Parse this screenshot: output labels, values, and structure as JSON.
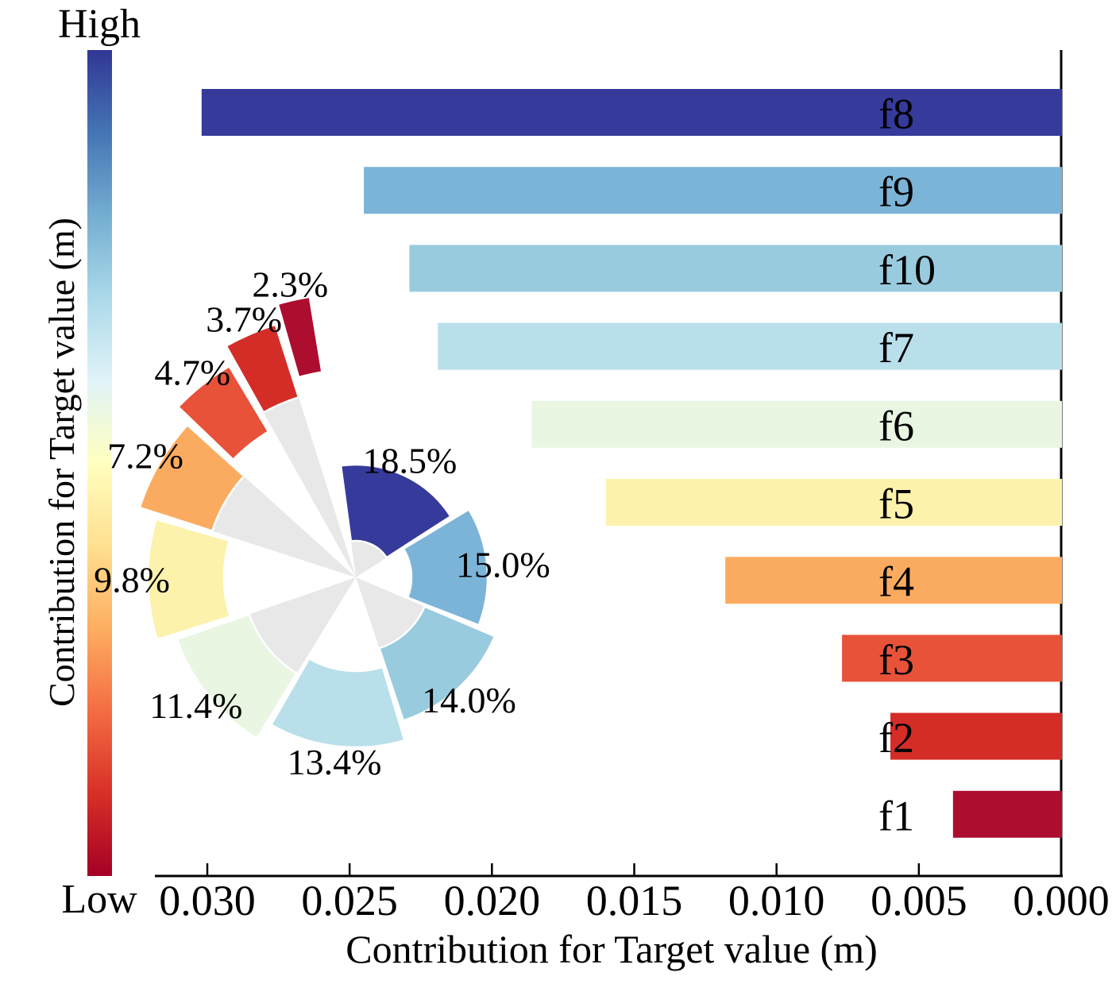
{
  "colorbar": {
    "label_high": "High",
    "label_low": "Low",
    "axis_label": "Contribution for Target value (m)",
    "gradient_top_to_bottom": [
      "#313695",
      "#4575b4",
      "#74add1",
      "#abd9e9",
      "#e0f3f8",
      "#ffffbf",
      "#fee090",
      "#fdae61",
      "#f46d43",
      "#d73027",
      "#a50026"
    ]
  },
  "chart_data": [
    {
      "type": "bar",
      "orientation": "horizontal",
      "x_axis_reversed": true,
      "categories": [
        "f8",
        "f9",
        "f10",
        "f7",
        "f6",
        "f5",
        "f4",
        "f3",
        "f2",
        "f1"
      ],
      "values": [
        0.0302,
        0.0245,
        0.0229,
        0.0219,
        0.0186,
        0.016,
        0.0118,
        0.0077,
        0.006,
        0.0038
      ],
      "colors": [
        "#353a9b",
        "#7cb4d8",
        "#99cbdf",
        "#b9dfeb",
        "#e8f6e2",
        "#fdf2ac",
        "#fbab60",
        "#e85239",
        "#d42d27",
        "#ad0d2e"
      ],
      "xlabel": "Contribution for Target value (m)",
      "x_ticks": [
        "0.030",
        "0.025",
        "0.020",
        "0.015",
        "0.010",
        "0.005",
        "0.000"
      ],
      "xlim": [
        0.03,
        0.0
      ],
      "grid": false,
      "bar_labels_inside_bars": true
    },
    {
      "type": "pie",
      "style": "spiral-rose",
      "labels": [
        "18.5%",
        "15.0%",
        "14.0%",
        "13.4%",
        "11.4%",
        "9.8%",
        "7.2%",
        "4.7%",
        "3.7%",
        "2.3%"
      ],
      "values": [
        18.5,
        15.0,
        14.0,
        13.4,
        11.4,
        9.8,
        7.2,
        4.7,
        3.7,
        2.3
      ],
      "colors": [
        "#353a9b",
        "#7cb4d8",
        "#99cbdf",
        "#b9dfeb",
        "#e8f6e2",
        "#fdf2ac",
        "#fbab60",
        "#e85239",
        "#d42d27",
        "#ad0d2e"
      ],
      "start_angle_deg": -8.5,
      "direction": "clockwise",
      "spacer_color": "#e8e8e8"
    }
  ]
}
